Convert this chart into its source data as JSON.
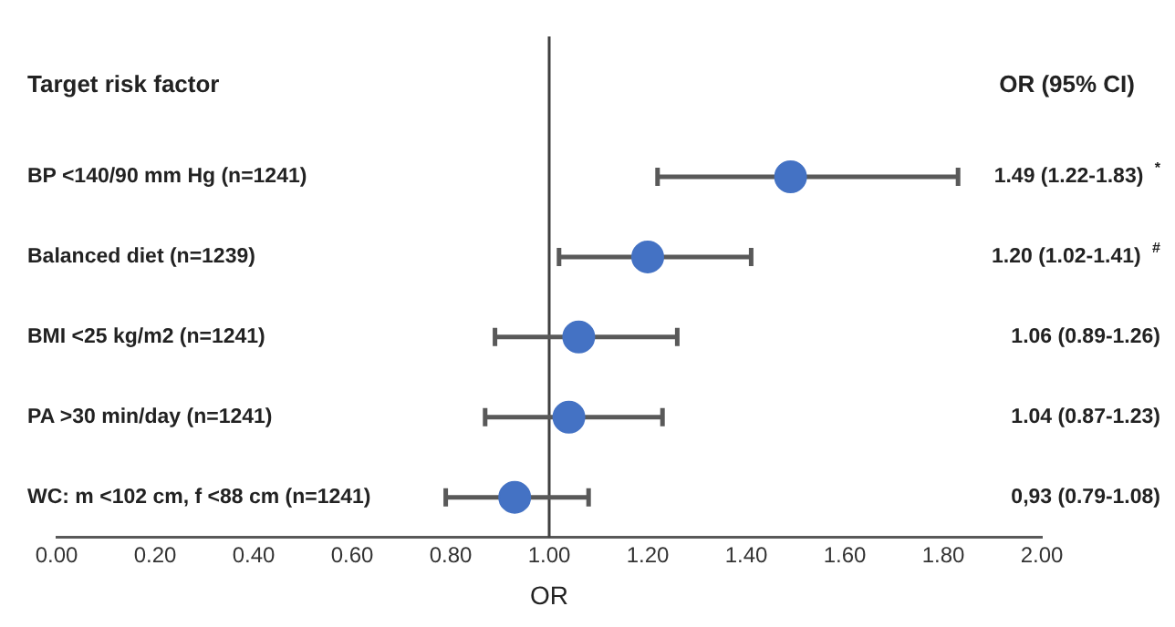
{
  "chart_data": {
    "type": "scatter",
    "orientation": "horizontal",
    "marker": "circle",
    "color": "#4472c4",
    "grid": false,
    "categories": [
      "BP <140/90 mm Hg (n=1241)",
      "Balanced diet (n=1239)",
      "BMI <25 kg/m2 (n=1241)",
      "PA >30 min/day (n=1241)",
      "WC: m <102 cm, f <88 cm (n=1241)"
    ],
    "values": [
      1.49,
      1.2,
      1.06,
      1.04,
      0.93
    ],
    "errors": [
      [
        1.22,
        1.83
      ],
      [
        1.02,
        1.41
      ],
      [
        0.89,
        1.26
      ],
      [
        0.87,
        1.23
      ],
      [
        0.79,
        1.08
      ]
    ],
    "value_labels": [
      "1.49 (1.22-1.83) $^{*}$",
      "1.20 (1.02-1.41) $^{#}$",
      "1.06 (0.89-1.26)",
      "1.04 (0.87-1.23)",
      "0,93 (0.79-1.08)"
    ],
    "xlim": [
      0,
      2
    ],
    "xticks": [
      {
        "value": 0,
        "label": "0.00"
      },
      {
        "value": 0.2,
        "label": "0.20"
      },
      {
        "value": 0.4,
        "label": "0.40"
      },
      {
        "value": 0.6,
        "label": "0.60"
      },
      {
        "value": 0.8,
        "label": "0.80"
      },
      {
        "value": 1,
        "label": "1.00"
      },
      {
        "value": 1.2,
        "label": "1.20"
      },
      {
        "value": 1.4,
        "label": "1.40"
      },
      {
        "value": 1.6,
        "label": "1.60"
      },
      {
        "value": 1.8,
        "label": "1.80"
      },
      {
        "value": 2,
        "label": "2.00"
      }
    ],
    "xlabel": "OR",
    "annotations": [
      "Target risk factor",
      "OR (95% CI)"
    ],
    "ref_lines": [
      {
        "axis": "x",
        "value": 1,
        "color": "#404040"
      }
    ]
  }
}
